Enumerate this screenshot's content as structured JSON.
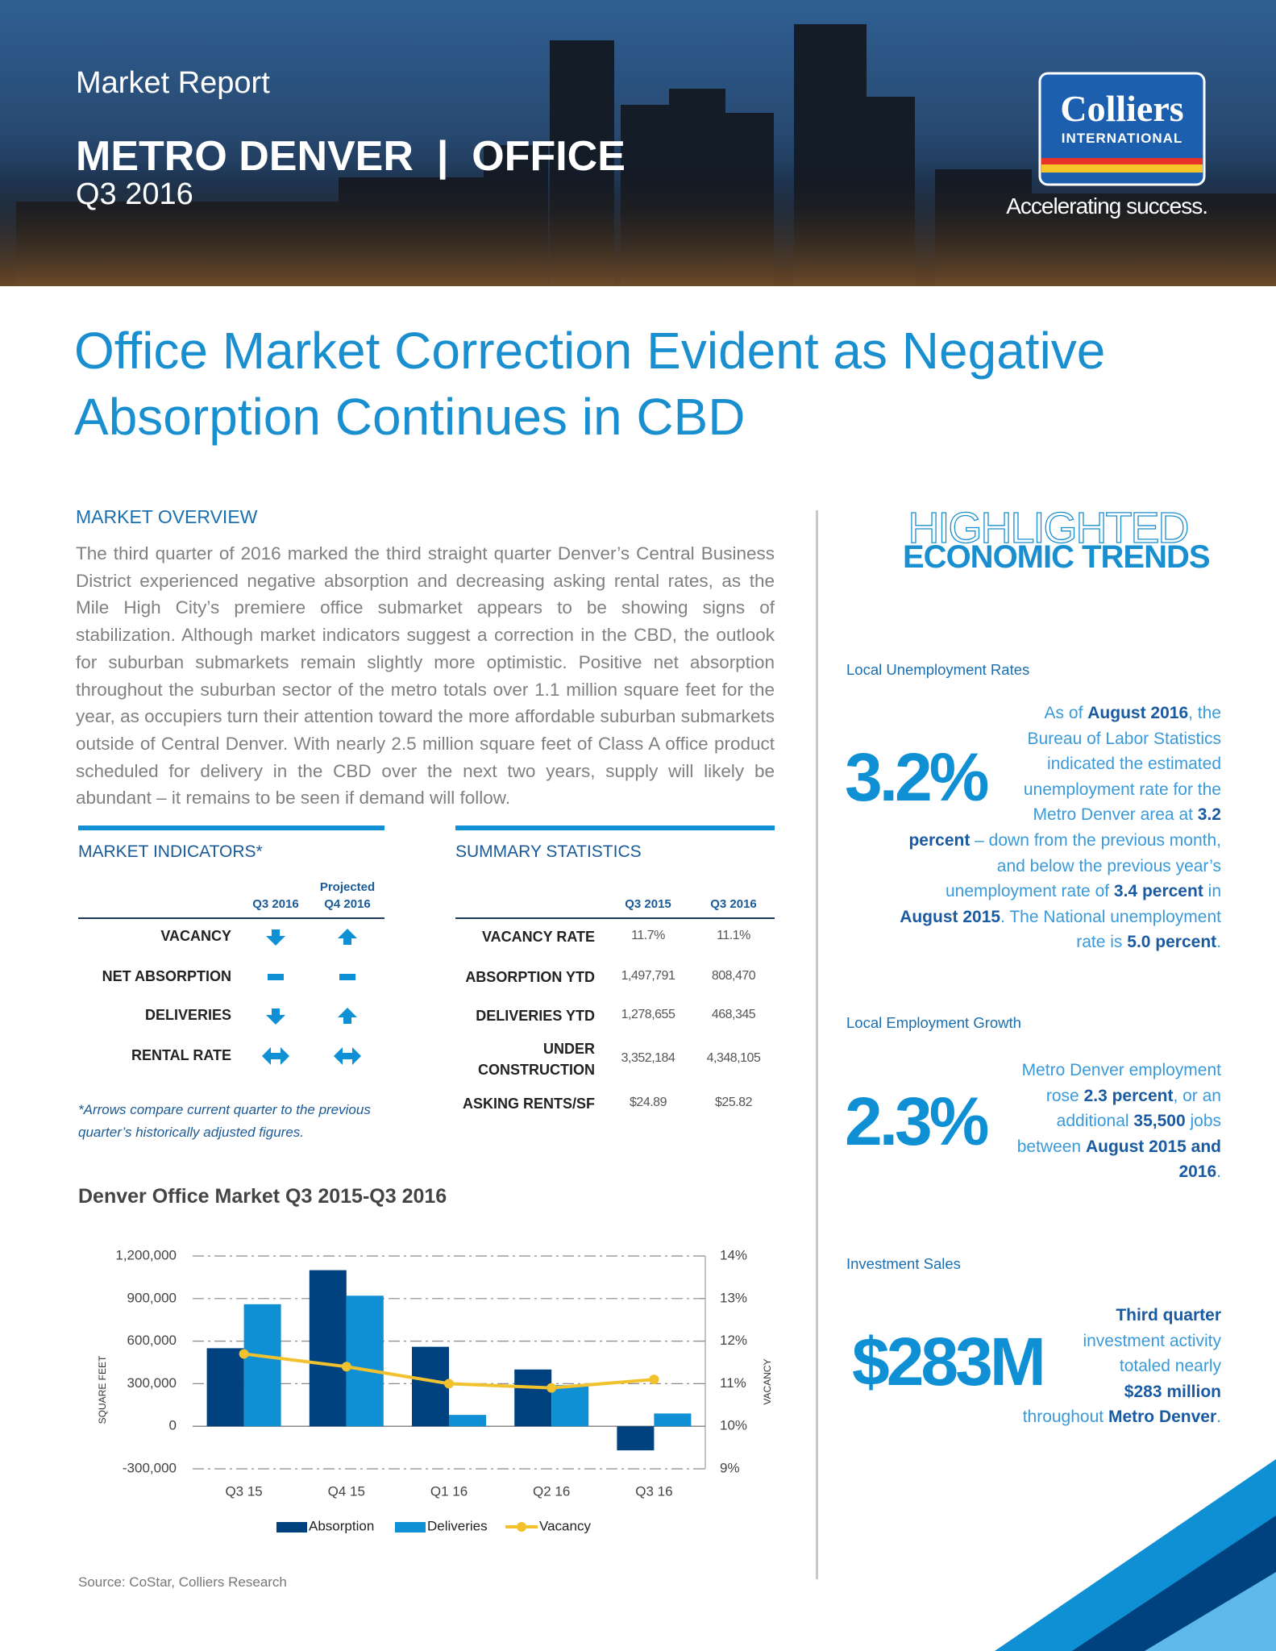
{
  "header": {
    "label": "Market Report",
    "title": "METRO DENVER  |  OFFICE",
    "period": "Q3 2016",
    "logo": "Colliers",
    "logo_sub": "INTERNATIONAL",
    "tagline": "Accelerating success."
  },
  "headline": [
    "Office Market Correction Evident as Negative",
    "Absorption Continues in CBD"
  ],
  "overview": {
    "heading": "MARKET OVERVIEW",
    "text": "The third quarter of 2016 marked the third straight quarter Denver’s Central Business District experienced negative absorption and decreasing asking rental rates, as the Mile High City’s premiere office submarket appears to be showing signs of stabilization. Although market indicators suggest a correction in the CBD, the outlook for suburban submarkets remain slightly more optimistic. Positive net absorption throughout the suburban sector of the metro totals over 1.1 million square feet for the year, as occupiers turn their attention toward the more affordable suburban submarkets outside of Central Denver. With nearly 2.5 million square feet of Class A office product scheduled for delivery in the CBD over the next two years, supply will likely be abundant – it remains to be seen if demand will follow."
  },
  "indicators": {
    "heading": "MARKET INDICATORS*",
    "columns": [
      "Q3 2016",
      "Projected Q4 2016"
    ],
    "rows": [
      "VACANCY",
      "NET ABSORPTION",
      "DELIVERIES",
      "RENTAL RATE"
    ],
    "note": "*Arrows compare current quarter to the previous quarter’s historically adjusted figures."
  },
  "summary": {
    "heading": "SUMMARY STATISTICS",
    "columns": [
      "Q3 2015",
      "Q3 2016"
    ],
    "rows": [
      [
        "VACANCY RATE",
        "11.7%",
        "11.1%"
      ],
      [
        "ABSORPTION YTD",
        "1,497,791",
        "808,470"
      ],
      [
        "DELIVERIES YTD",
        "1,278,655",
        "468,345"
      ],
      [
        "UNDER CONSTRUCTION",
        "3,352,184",
        "4,348,105"
      ],
      [
        "ASKING RENTS/SF",
        "$24.89",
        "$25.82"
      ]
    ]
  },
  "chart_data": {
    "type": "bar",
    "title": "Denver Office Market Q3 2015-Q3 2016",
    "categories": [
      "Q3 15",
      "Q4 15",
      "Q1 16",
      "Q2 16",
      "Q3 16"
    ],
    "series": [
      {
        "name": "Absorption",
        "type": "bar",
        "color": "#00427f",
        "values": [
          550000,
          1100000,
          560000,
          400000,
          -170000
        ]
      },
      {
        "name": "Deliveries",
        "type": "bar",
        "color": "#0f8fd4",
        "values": [
          860000,
          920000,
          80000,
          290000,
          90000
        ]
      },
      {
        "name": "Vacancy",
        "type": "line",
        "axis": "y2",
        "color": "#f2c22e",
        "values": [
          11.7,
          11.4,
          11.0,
          10.9,
          11.1
        ]
      }
    ],
    "ylim": [
      -300000,
      1200000
    ],
    "yticks": [
      {
        "value": -300000,
        "label": "-300,000"
      },
      0,
      {
        "value": 300000,
        "label": "300,000"
      },
      {
        "value": 600000,
        "label": "600,000"
      },
      {
        "value": 900000,
        "label": "900,000"
      },
      {
        "value": 1200000,
        "label": "1,200,000"
      }
    ],
    "y2lim": [
      9,
      14
    ],
    "y2ticks": [
      {
        "value": 9,
        "label": "9%"
      },
      {
        "value": 10,
        "label": "10%"
      },
      {
        "value": 11,
        "label": "11%"
      },
      {
        "value": 12,
        "label": "12%"
      },
      {
        "value": 13,
        "label": "13%"
      },
      {
        "value": 14,
        "label": "14%"
      }
    ],
    "ylabel": "SQUARE FEET",
    "y2label": "VACANCY",
    "grid": true,
    "legend": "bottom"
  },
  "source": "Source: CoStar, Colliers Research",
  "trends": {
    "title": [
      "HIGHLIGHTED",
      "ECONOMIC TRENDS"
    ],
    "items": [
      {
        "heading": "Local Unemployment Rates",
        "stat": "3.2%",
        "text": [
          {
            "t": "As of "
          },
          {
            "t": "August 2016",
            "b": true
          },
          {
            "t": ", the Bureau of Labor Statistics indicated the estimated unemployment rate for the Metro Denver area at "
          },
          {
            "t": "3.2 percent",
            "b": true
          },
          {
            "t": " – down from the previous month, and below the previous year’s unemployment rate of "
          },
          {
            "t": "3.4 percent",
            "b": true
          },
          {
            "t": " in "
          },
          {
            "t": "August 2015",
            "b": true
          },
          {
            "t": ".  The National unemployment rate is "
          },
          {
            "t": "5.0 percent",
            "b": true
          },
          {
            "t": "."
          }
        ]
      },
      {
        "heading": "Local Employment Growth",
        "stat": "2.3%",
        "text": [
          {
            "t": "Metro Denver employment rose "
          },
          {
            "t": "2.3 percent",
            "b": true
          },
          {
            "t": ", or an additional "
          },
          {
            "t": "35,500",
            "b": true
          },
          {
            "t": " jobs between "
          },
          {
            "t": "August 2015 and 2016",
            "b": true
          },
          {
            "t": "."
          }
        ]
      },
      {
        "heading": "Investment Sales",
        "stat": "$283M",
        "text": [
          {
            "t": "Third quarter",
            "b": true
          },
          {
            "t": " investment activity totaled nearly "
          },
          {
            "t": "$283 million",
            "b": true
          },
          {
            "t": " throughout "
          },
          {
            "t": "Metro Denver",
            "b": true
          },
          {
            "t": "."
          }
        ]
      }
    ]
  }
}
